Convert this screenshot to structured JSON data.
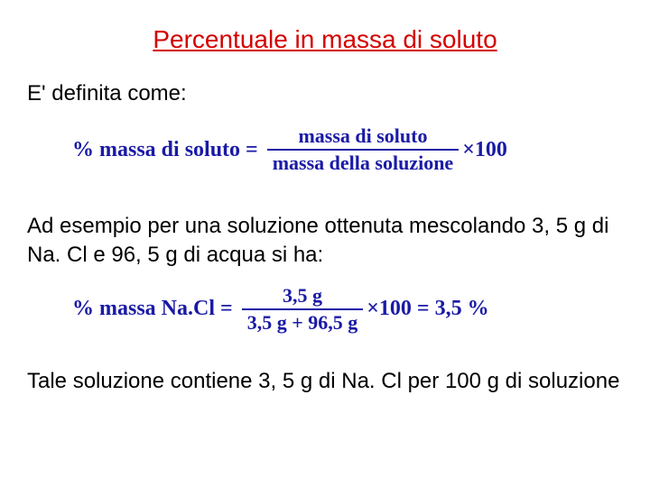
{
  "colors": {
    "title": "#d40000",
    "body": "#000000",
    "formula": "#1a1aa6",
    "background": "#ffffff"
  },
  "title": "Percentuale in massa di soluto",
  "intro": "E' definita come:",
  "formula1": {
    "lhs": "% massa di soluto",
    "eq": "=",
    "numerator": "massa di soluto",
    "denominator": "massa della soluzione",
    "tail": "×100"
  },
  "example_intro": "Ad esempio per una soluzione ottenuta mescolando 3, 5 g di Na. Cl e 96, 5 g di acqua si ha:",
  "formula2": {
    "lhs": "% massa Na.Cl",
    "eq": "=",
    "numerator": "3,5 g",
    "denominator": "3,5 g + 96,5 g",
    "tail": "×100 = 3,5 %"
  },
  "conclusion": "Tale soluzione contiene 3, 5 g di Na. Cl per 100 g di soluzione"
}
